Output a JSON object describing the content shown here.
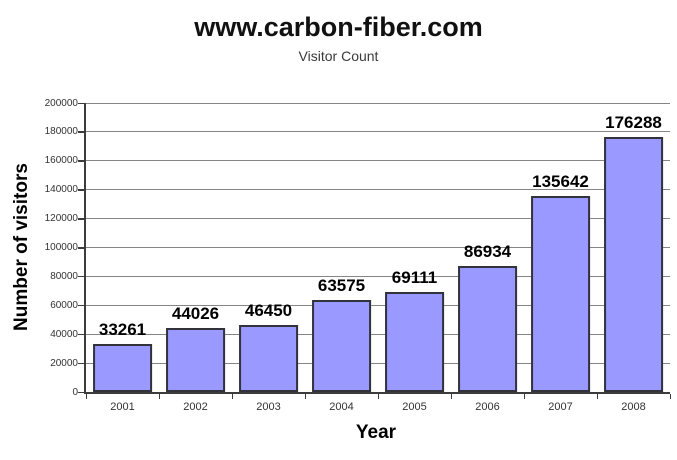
{
  "chart_data": {
    "type": "bar",
    "title": "www.carbon-fiber.com",
    "subtitle": "Visitor Count",
    "categories": [
      "2001",
      "2002",
      "2003",
      "2004",
      "2005",
      "2006",
      "2007",
      "2008"
    ],
    "values": [
      33261,
      44026,
      46450,
      63575,
      69111,
      86934,
      135642,
      176288
    ],
    "xlabel": "Year",
    "ylabel": "Number of visitors",
    "ylim": [
      0,
      200000
    ],
    "ytick_step": 20000,
    "grid": true,
    "legend_position": "none",
    "colors": {
      "bar_fill": "#9999ff",
      "bar_border": "#32323c",
      "gridline": "#858585",
      "axis": "#3c3c3c",
      "value_label_text": "#000000",
      "tick_label_text": "#333333",
      "title_text": "#111111",
      "subtitle_text": "#3a3a3a",
      "background": "#ffffff"
    }
  }
}
